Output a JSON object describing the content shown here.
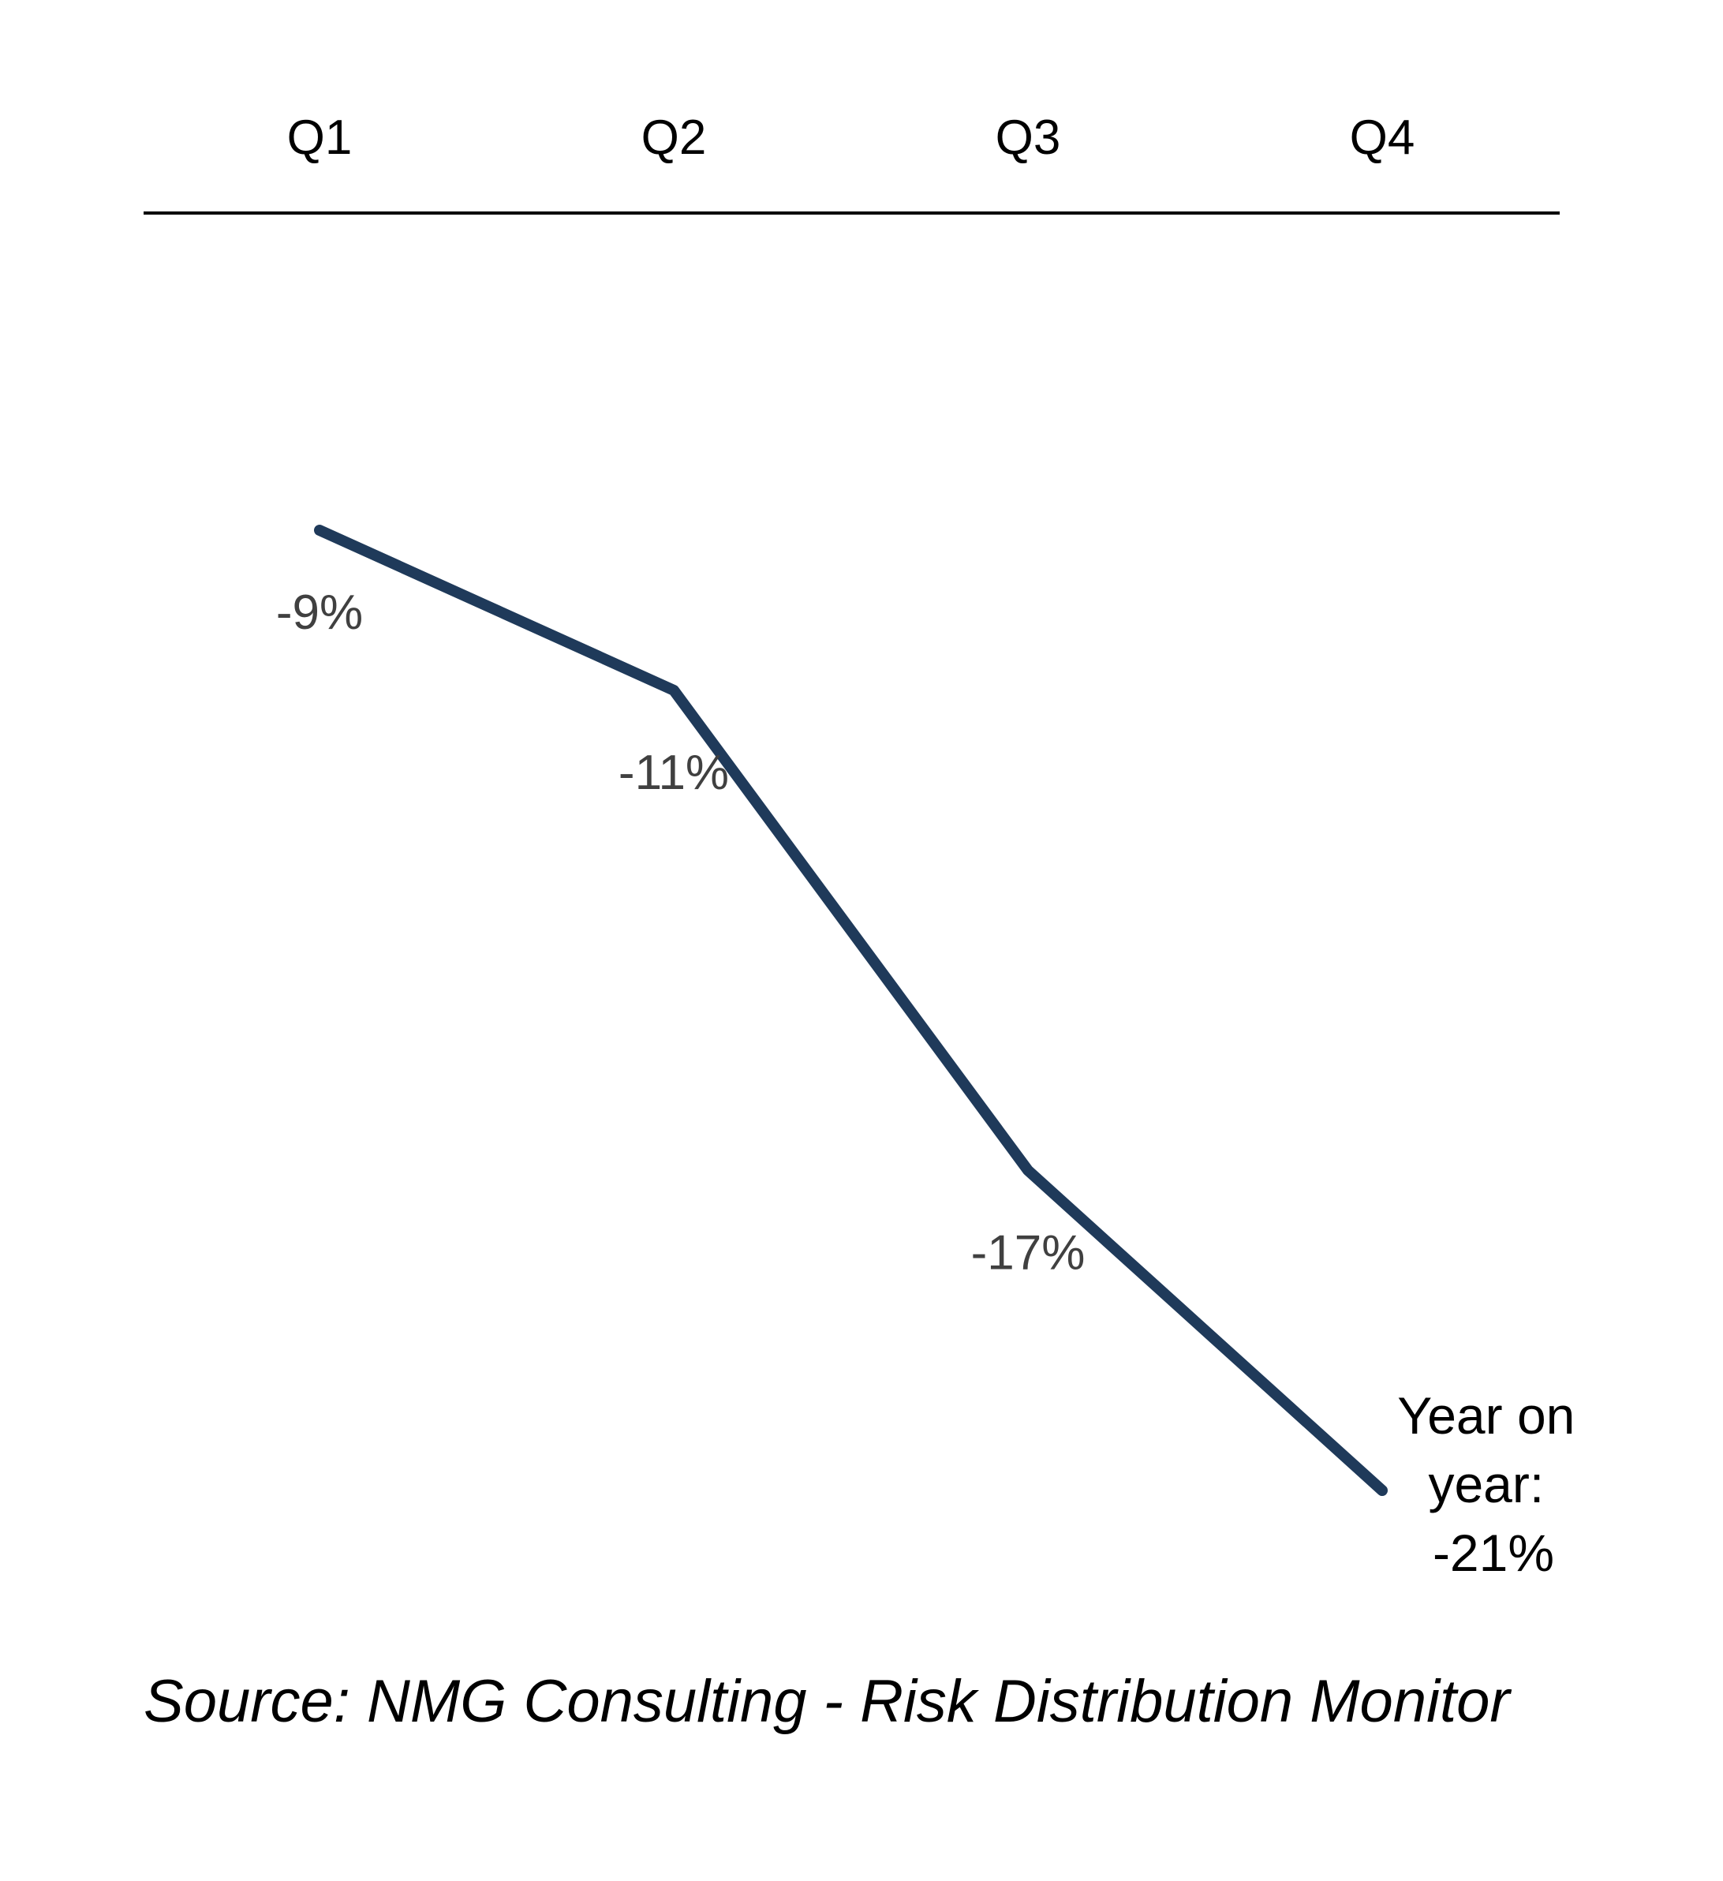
{
  "colors": {
    "line": "#1f3a5a",
    "axis": "#000000",
    "data_label": "#404040"
  },
  "chart_data": {
    "type": "line",
    "categories": [
      "Q1",
      "Q2",
      "Q3",
      "Q4"
    ],
    "series": [
      {
        "values": [
          -9,
          -11,
          -17,
          -21
        ]
      }
    ],
    "data_labels": [
      "-9%",
      "-11%",
      "-17%"
    ],
    "xaxis_position": "top",
    "grid": false,
    "legend": false,
    "annotation": {
      "lines": [
        "Year on",
        "year:",
        "-21%"
      ]
    },
    "title": "",
    "xlabel": "",
    "ylabel": ""
  },
  "source": "Source: NMG Consulting - Risk Distribution Monitor"
}
